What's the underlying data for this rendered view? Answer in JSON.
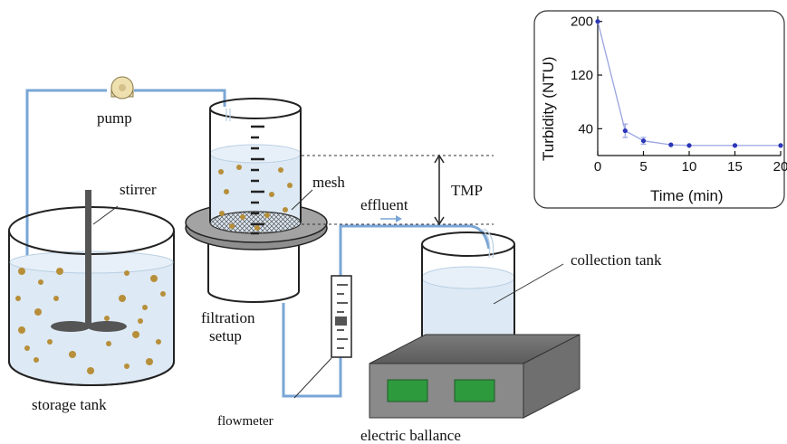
{
  "labels": {
    "pump": "pump",
    "stirrer": "stirrer",
    "mesh": "mesh",
    "effluent": "effluent",
    "tmp": "TMP",
    "collection_tank": "collection tank",
    "filtration_setup_1": "filtration",
    "filtration_setup_2": "setup",
    "storage_tank": "storage tank",
    "flowmeter": "flowmeter",
    "electric_balance": "electric ballance"
  },
  "colors": {
    "water": "#dde9f4",
    "pipe": "#7aa6d6",
    "particle": "#b78f3a",
    "balance_top": "#6b6b6b",
    "balance_display": "#2e9a3e",
    "chart_line": "#9aa4e0",
    "chart_point": "#2b36b8"
  },
  "chart_data": {
    "type": "line",
    "xlabel": "Time (min)",
    "ylabel": "Turbidity (NTU)",
    "xlim": [
      0,
      20
    ],
    "ylim": [
      0,
      205
    ],
    "xticks": [
      0,
      5,
      10,
      15,
      20
    ],
    "yticks": [
      40,
      120,
      200
    ],
    "x": [
      0,
      3,
      5,
      8,
      10,
      15,
      20
    ],
    "y": [
      200,
      37,
      22,
      16,
      15,
      15,
      15
    ],
    "yerr": [
      0,
      10,
      5,
      0,
      0,
      0,
      0
    ],
    "grid": false,
    "legend": "none"
  }
}
